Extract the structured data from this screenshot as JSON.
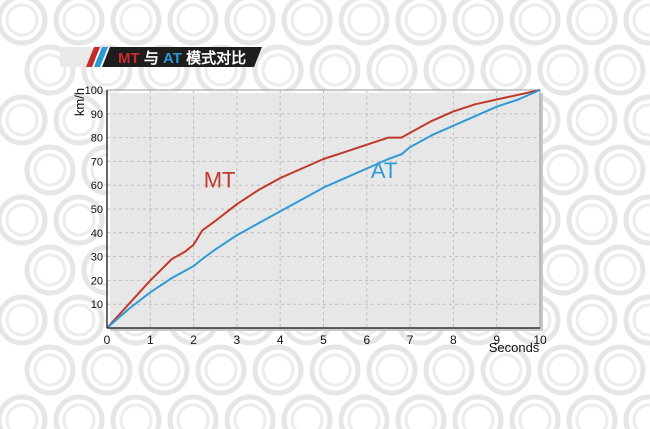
{
  "chart_data": {
    "type": "line",
    "title_parts": [
      {
        "text": "MT",
        "color": "#cc2a2a"
      },
      {
        "text": " 与 ",
        "color": "#ffffff"
      },
      {
        "text": "AT",
        "color": "#2a9ad6"
      },
      {
        "text": " 模式对比",
        "color": "#ffffff"
      }
    ],
    "xlabel": "Seconds",
    "ylabel": "km/h",
    "xlim": [
      0,
      10
    ],
    "ylim": [
      0,
      100
    ],
    "xticks": [
      0,
      1,
      2,
      3,
      4,
      5,
      6,
      7,
      8,
      9,
      10
    ],
    "yticks": [
      10,
      20,
      30,
      40,
      50,
      60,
      70,
      80,
      90,
      100
    ],
    "grid": true,
    "series": [
      {
        "name": "MT",
        "color": "#c0392b",
        "x": [
          0,
          0.5,
          1.0,
          1.5,
          1.8,
          2.0,
          2.2,
          2.5,
          3.0,
          3.5,
          4.0,
          4.5,
          5.0,
          5.5,
          6.0,
          6.5,
          6.8,
          7.0,
          7.5,
          8.0,
          8.5,
          9.0,
          9.5,
          10.0
        ],
        "y": [
          0,
          10,
          20,
          29,
          32,
          35,
          41,
          45,
          52,
          58,
          63,
          67,
          71,
          74,
          77,
          80,
          80,
          82,
          87,
          91,
          94,
          96,
          98,
          100
        ]
      },
      {
        "name": "AT",
        "color": "#2e9bd6",
        "x": [
          0,
          0.5,
          1.0,
          1.5,
          2.0,
          2.2,
          2.5,
          3.0,
          3.5,
          4.0,
          4.5,
          5.0,
          5.5,
          6.0,
          6.5,
          6.8,
          7.0,
          7.5,
          8.0,
          8.5,
          9.0,
          9.5,
          10.0
        ],
        "y": [
          0,
          8,
          15,
          21,
          26,
          29,
          33,
          39,
          44,
          49,
          54,
          59,
          63,
          67,
          71,
          73,
          76,
          81,
          85,
          89,
          93,
          96,
          100
        ]
      }
    ],
    "annotations": [
      {
        "text": "MT",
        "color": "#c0392b",
        "x": 2.6,
        "y": 59
      },
      {
        "text": "AT",
        "color": "#2e9bd6",
        "x": 6.4,
        "y": 63
      }
    ]
  }
}
